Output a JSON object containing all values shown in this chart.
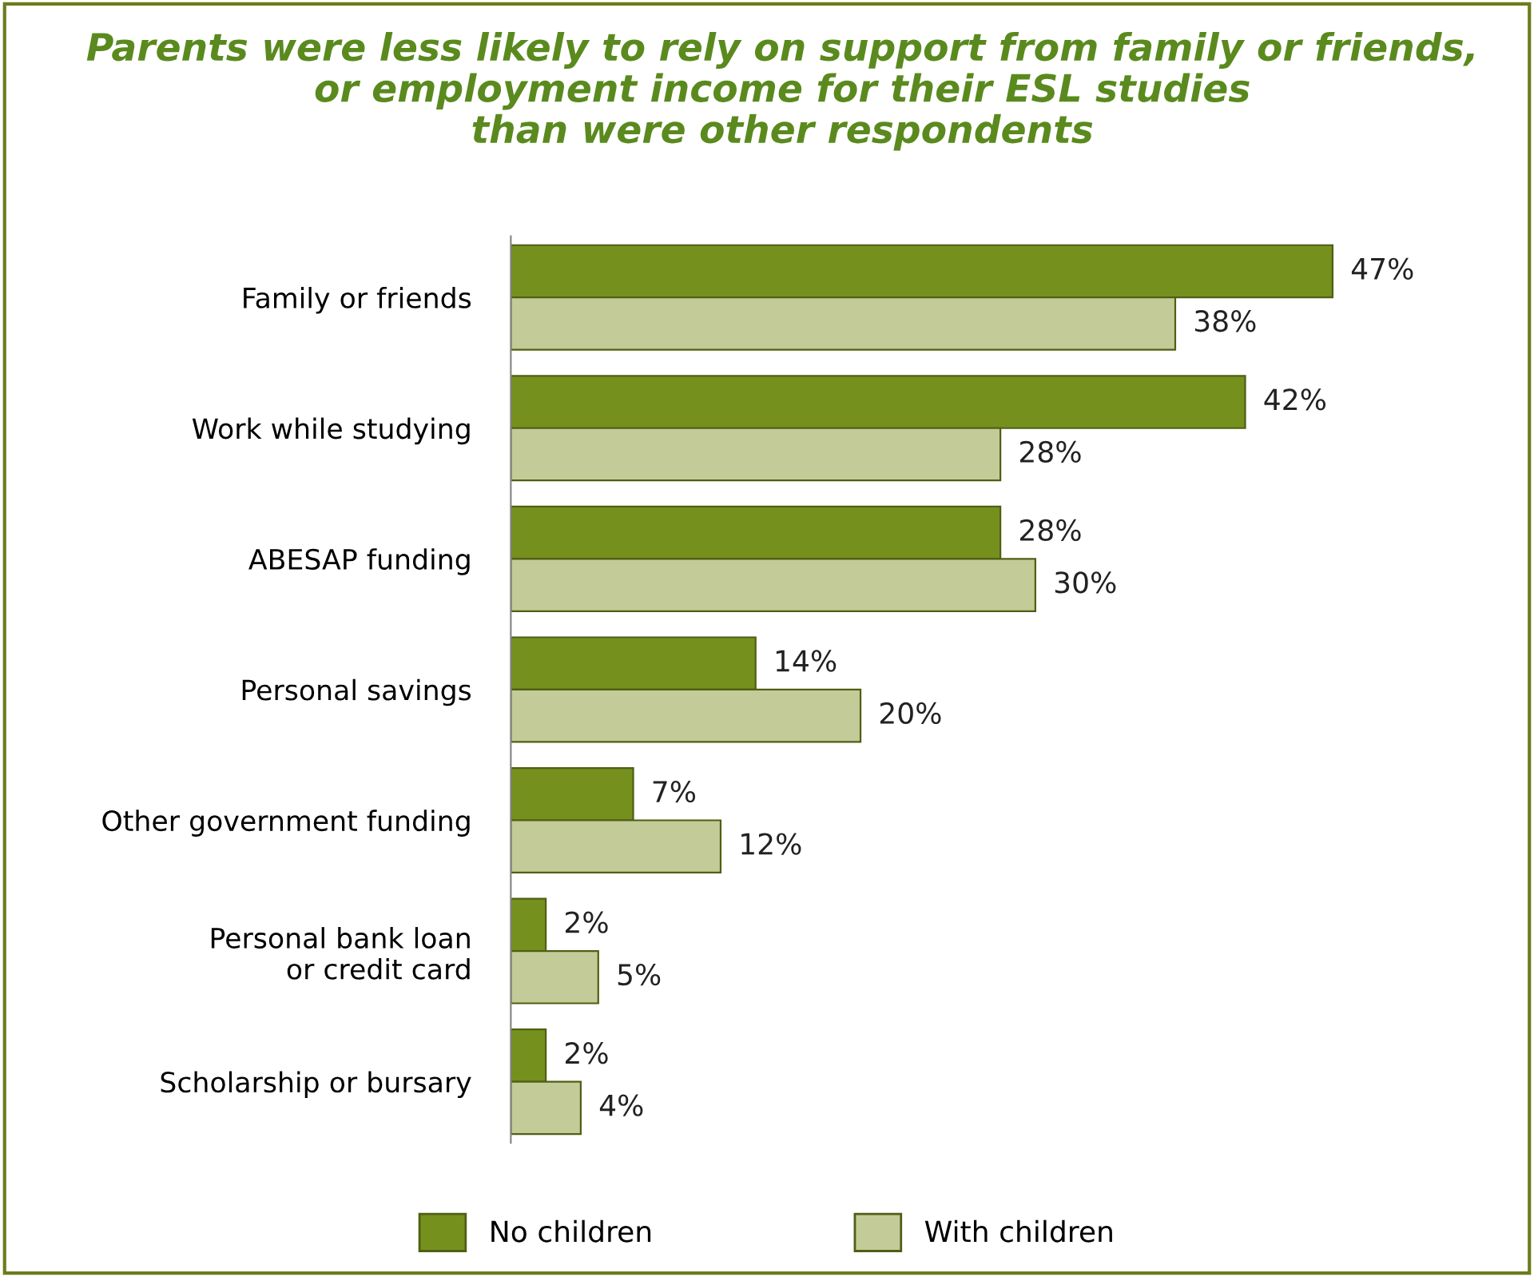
{
  "chart_data": {
    "type": "bar",
    "orientation": "horizontal",
    "title": "Parents were less likely to rely on support from family or friends,\nor employment income for their ESL studies\nthan were other respondents",
    "categories": [
      "Family or friends",
      "Work while studying",
      "ABESAP funding",
      "Personal savings",
      "Other government funding",
      "Personal bank loan\nor credit card",
      "Scholarship or bursary"
    ],
    "series": [
      {
        "name": "No children",
        "color": "#76901e",
        "values": [
          47,
          42,
          28,
          14,
          7,
          2,
          2
        ],
        "value_labels": [
          "47%",
          "42%",
          "28%",
          "14%",
          "7%",
          "2%",
          "2%"
        ]
      },
      {
        "name": "With children",
        "color": "#c3cc98",
        "values": [
          38,
          28,
          30,
          20,
          12,
          5,
          4
        ],
        "value_labels": [
          "38%",
          "28%",
          "30%",
          "20%",
          "12%",
          "5%",
          "4%"
        ]
      }
    ],
    "legend": "bottom",
    "tick_labels": "y",
    "grid": false
  }
}
